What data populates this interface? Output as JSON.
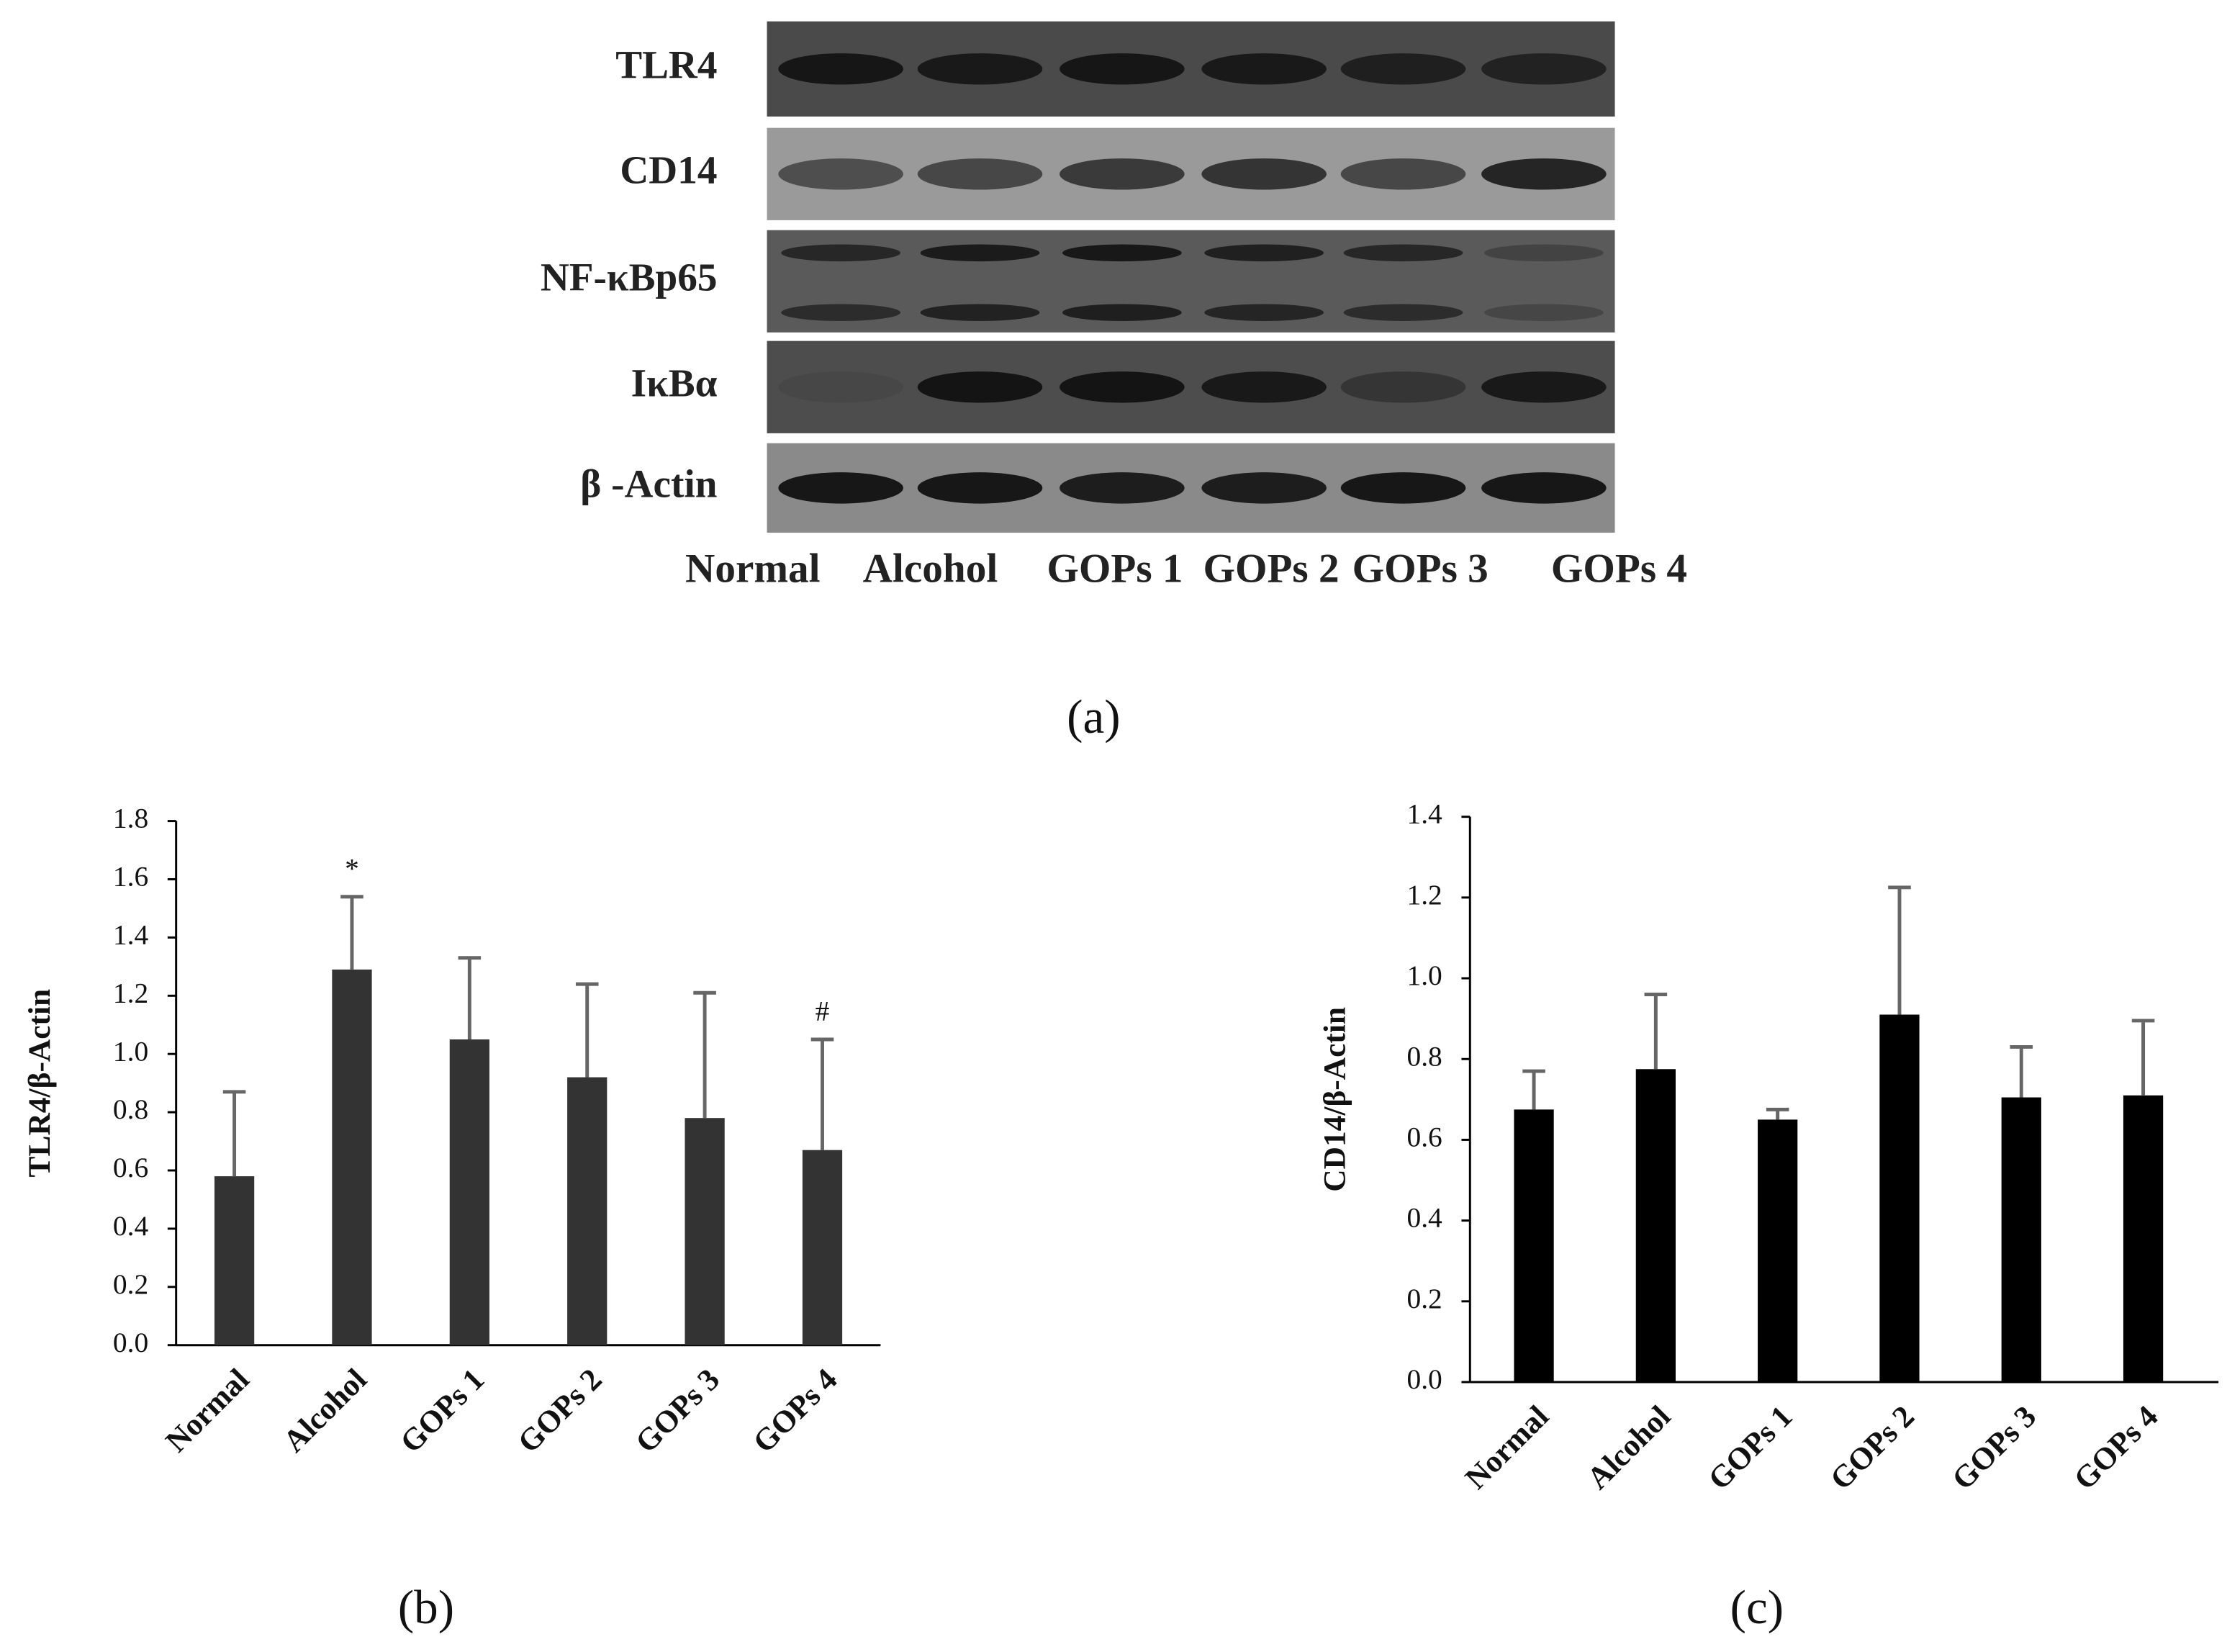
{
  "blot": {
    "proteins": [
      "TLR4",
      "CD14",
      "NF-κBp65",
      "IκBα",
      "β -Actin"
    ],
    "lanes": [
      "Normal",
      "Alcohol",
      "GOPs 1",
      "GOPs 2",
      "GOPs 3",
      "GOPs 4"
    ],
    "panel_label": "(a)"
  },
  "chart_data": [
    {
      "type": "bar",
      "panel_label": "(b)",
      "ylabel": "TLR4/β-Actin",
      "categories": [
        "Normal",
        "Alcohol",
        "GOPs 1",
        "GOPs 2",
        "GOPs 3",
        "GOPs 4"
      ],
      "values": [
        0.58,
        1.29,
        1.05,
        0.92,
        0.78,
        0.67
      ],
      "errors": [
        0.29,
        0.25,
        0.28,
        0.32,
        0.43,
        0.38
      ],
      "annotations": [
        null,
        "*",
        null,
        null,
        null,
        "#"
      ],
      "color": "#333333",
      "error_color": "#666666",
      "ylim": [
        0,
        1.8
      ],
      "yticks": [
        {
          "value": 0,
          "label": "0.0"
        },
        0.2,
        0.4,
        0.6,
        0.8,
        {
          "value": 1,
          "label": "1.0"
        },
        1.2,
        1.4,
        1.6,
        1.8
      ]
    },
    {
      "type": "bar",
      "panel_label": "(c)",
      "ylabel": "CD14/β-Actin",
      "categories": [
        "Normal",
        "Alcohol",
        "GOPs 1",
        "GOPs 2",
        "GOPs 3",
        "GOPs 4"
      ],
      "values": [
        0.675,
        0.775,
        0.65,
        0.91,
        0.705,
        0.71
      ],
      "errors": [
        0.095,
        0.185,
        0.025,
        0.315,
        0.125,
        0.185
      ],
      "color": "#000000",
      "error_color": "#666666",
      "ylim": [
        0,
        1.4
      ],
      "yticks": [
        {
          "value": 0,
          "label": "0.0"
        },
        0.2,
        0.4,
        0.6,
        0.8,
        {
          "value": 1,
          "label": "1.0"
        },
        1.2,
        1.4
      ]
    }
  ]
}
